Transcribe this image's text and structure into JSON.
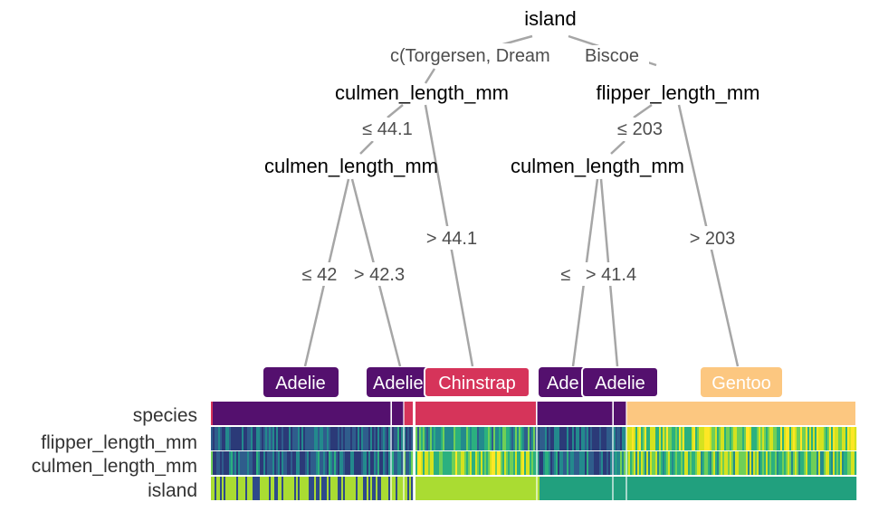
{
  "tree": {
    "nodes": [
      {
        "id": "root",
        "label": "island"
      },
      {
        "id": "n_left",
        "label": "culmen_length_mm"
      },
      {
        "id": "n_right",
        "label": "flipper_length_mm"
      },
      {
        "id": "n_left2",
        "label": "culmen_length_mm"
      },
      {
        "id": "n_right2",
        "label": "culmen_length_mm"
      }
    ],
    "edges": [
      {
        "id": "root-left-split",
        "label": "c(Torgersen, Dream"
      },
      {
        "id": "root-right-split",
        "label": "Biscoe"
      },
      {
        "id": "left-le",
        "label": "≤ 44.1"
      },
      {
        "id": "left-gt",
        "label": "> 44.1"
      },
      {
        "id": "left2-le",
        "label": "≤ 42"
      },
      {
        "id": "left2-gt",
        "label": "> 42.3"
      },
      {
        "id": "right-le",
        "label": "≤ 203"
      },
      {
        "id": "right-gt",
        "label": "> 203"
      },
      {
        "id": "right2-le",
        "label": "≤"
      },
      {
        "id": "right2-gt",
        "label": "> 41.4"
      }
    ],
    "leaves": [
      {
        "id": "leaf1",
        "label": "Adelie",
        "color": "#54106e"
      },
      {
        "id": "leaf2",
        "label": "Adelie",
        "color": "#54106e"
      },
      {
        "id": "leaf3",
        "label": "Chinstrap",
        "color": "#d6345a"
      },
      {
        "id": "leaf4",
        "label": "Ade",
        "color": "#54106e"
      },
      {
        "id": "leaf5",
        "label": "Adelie",
        "color": "#54106e"
      },
      {
        "id": "leaf6",
        "label": "Gentoo",
        "color": "#fcc780"
      }
    ]
  },
  "heatmap": {
    "rows": [
      "species",
      "flipper_length_mm",
      "culmen_length_mm",
      "island"
    ],
    "species_colors": {
      "Adelie": "#54106e",
      "Chinstrap": "#d6345a",
      "Gentoo": "#fcc780"
    },
    "island_colors": {
      "Torgersen": "#2e4a8a",
      "Dream": "#aadc32",
      "Biscoe": "#21a07e"
    },
    "continuous_palette": [
      "#2b3a78",
      "#2f5d8c",
      "#238a8d",
      "#2bb07f",
      "#6fcf57",
      "#d5e21f",
      "#fde725"
    ]
  }
}
